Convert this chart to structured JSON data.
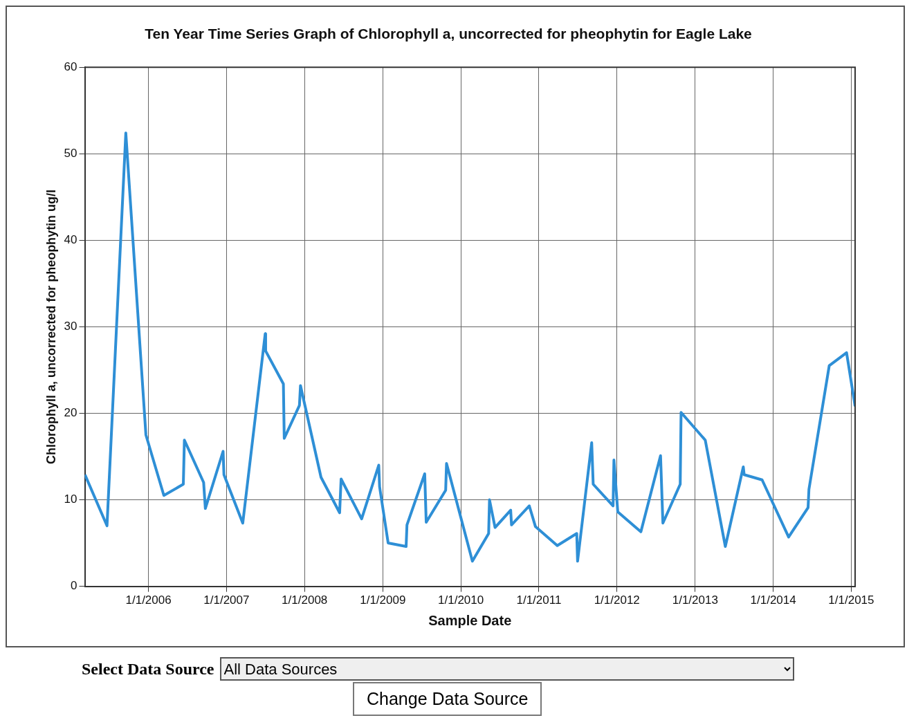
{
  "chart_data": {
    "type": "line",
    "title": "Ten Year Time Series Graph of Chlorophyll a, uncorrected for pheophytin for Eagle Lake",
    "xlabel": "Sample Date",
    "ylabel": "Chlorophyll a, uncorrected for pheophytin ug/l",
    "x": [
      "2005-03-10",
      "2005-06-21",
      "2005-09-17",
      "2005-12-20",
      "2006-03-14",
      "2006-06-13",
      "2006-06-18",
      "2006-09-16",
      "2006-09-24",
      "2006-12-16",
      "2006-12-20",
      "2007-03-18",
      "2007-07-01",
      "2007-07-03",
      "2007-09-24",
      "2007-09-28",
      "2007-12-08",
      "2007-12-13",
      "2008-03-18",
      "2008-06-13",
      "2008-06-20",
      "2008-09-24",
      "2008-12-13",
      "2008-12-17",
      "2009-01-26",
      "2009-04-20",
      "2009-04-24",
      "2009-07-16",
      "2009-07-23",
      "2009-10-22",
      "2009-10-26",
      "2010-02-24",
      "2010-05-11",
      "2010-05-15",
      "2010-06-10",
      "2010-08-22",
      "2010-08-26",
      "2010-11-17",
      "2010-12-16",
      "2011-03-28",
      "2011-06-27",
      "2011-07-01",
      "2011-09-05",
      "2011-09-12",
      "2011-12-14",
      "2011-12-18",
      "2012-01-05",
      "2012-04-22",
      "2012-07-23",
      "2012-08-03",
      "2012-10-23",
      "2012-10-27",
      "2013-02-17",
      "2013-05-22",
      "2013-08-14",
      "2013-08-18",
      "2013-11-10",
      "2014-03-14",
      "2014-06-13",
      "2014-06-17",
      "2014-09-20",
      "2014-12-10",
      "2015-01-19"
    ],
    "values": [
      12.9,
      7,
      52.4,
      17.5,
      10.5,
      11.8,
      16.9,
      12,
      9,
      15.6,
      12.9,
      7.3,
      29.2,
      27.2,
      23.4,
      17.1,
      20.9,
      23.2,
      12.6,
      8.5,
      12.4,
      7.8,
      14,
      11.5,
      5,
      4.6,
      7.1,
      13,
      7.4,
      11.1,
      14.2,
      2.9,
      6.1,
      10,
      6.8,
      8.8,
      7.1,
      9.3,
      6.9,
      4.7,
      6.1,
      2.9,
      16.6,
      11.8,
      9.3,
      14.6,
      8.6,
      6.3,
      15.1,
      7.3,
      11.8,
      20.1,
      16.9,
      4.6,
      13.8,
      12.9,
      12.3,
      5.7,
      9.1,
      11.2,
      25.5,
      27,
      20.8
    ],
    "color": "#2e8fd6",
    "marker": "none",
    "line_style": "solid",
    "grid": true,
    "legend": false,
    "xlim": [
      "2005-03-09",
      "2015-01-19"
    ],
    "xticks": [
      {
        "value": "2006-01-01",
        "label": "1/1/2006"
      },
      {
        "value": "2007-01-01",
        "label": "1/1/2007"
      },
      {
        "value": "2008-01-01",
        "label": "1/1/2008"
      },
      {
        "value": "2009-01-01",
        "label": "1/1/2009"
      },
      {
        "value": "2010-01-01",
        "label": "1/1/2010"
      },
      {
        "value": "2011-01-01",
        "label": "1/1/2011"
      },
      {
        "value": "2012-01-01",
        "label": "1/1/2012"
      },
      {
        "value": "2013-01-01",
        "label": "1/1/2013"
      },
      {
        "value": "2014-01-01",
        "label": "1/1/2014"
      },
      {
        "value": "2015-01-01",
        "label": "1/1/2015"
      }
    ],
    "ylim": [
      0,
      60
    ],
    "yticks": [
      0,
      10,
      20,
      30,
      40,
      50,
      60
    ],
    "annotations": [
      "Select Data Source",
      "All Data Sources",
      "Change Data Source"
    ]
  }
}
